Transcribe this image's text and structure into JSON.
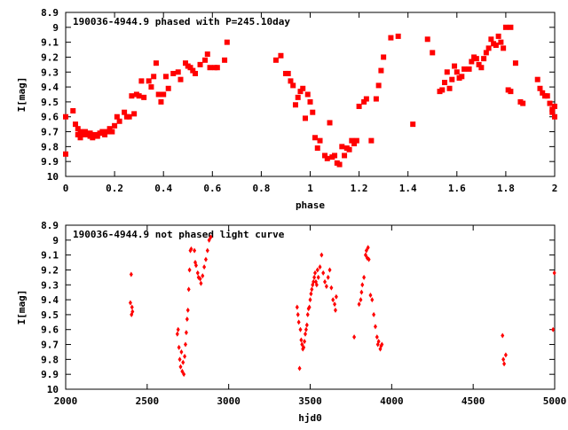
{
  "colors": {
    "points": "#ff0000",
    "frame": "#000000",
    "background": "#ffffff"
  },
  "chart_data": [
    {
      "type": "scatter",
      "title": "190036-4944.9 phased with P=245.10day",
      "xlabel": "phase",
      "ylabel": "I[mag]",
      "xlim": [
        0,
        2
      ],
      "ylim": [
        10,
        8.9
      ],
      "y_inverted": true,
      "xticks": [
        0,
        0.2,
        0.4,
        0.6,
        0.8,
        1,
        1.2,
        1.4,
        1.6,
        1.8,
        2
      ],
      "xtick_labels": [
        "0",
        "0.2",
        "0.4",
        "0.6",
        "0.8",
        "1",
        "1.2",
        "1.4",
        "1.6",
        "1.8",
        "2"
      ],
      "yticks": [
        8.9,
        9,
        9.1,
        9.2,
        9.3,
        9.4,
        9.5,
        9.6,
        9.7,
        9.8,
        9.9,
        10
      ],
      "ytick_labels": [
        "8.9",
        "9",
        "9.1",
        "9.2",
        "9.3",
        "9.4",
        "9.5",
        "9.6",
        "9.7",
        "9.8",
        "9.9",
        "10"
      ],
      "grid": false,
      "marker": "square",
      "points": [
        [
          0.0,
          9.6
        ],
        [
          0.0,
          9.85
        ],
        [
          0.03,
          9.56
        ],
        [
          0.04,
          9.65
        ],
        [
          0.05,
          9.68
        ],
        [
          0.05,
          9.72
        ],
        [
          0.06,
          9.7
        ],
        [
          0.06,
          9.74
        ],
        [
          0.07,
          9.72
        ],
        [
          0.08,
          9.7
        ],
        [
          0.09,
          9.72
        ],
        [
          0.1,
          9.73
        ],
        [
          0.1,
          9.71
        ],
        [
          0.11,
          9.74
        ],
        [
          0.12,
          9.72
        ],
        [
          0.13,
          9.73
        ],
        [
          0.14,
          9.71
        ],
        [
          0.15,
          9.7
        ],
        [
          0.16,
          9.72
        ],
        [
          0.17,
          9.7
        ],
        [
          0.18,
          9.68
        ],
        [
          0.19,
          9.7
        ],
        [
          0.2,
          9.66
        ],
        [
          0.21,
          9.6
        ],
        [
          0.22,
          9.63
        ],
        [
          0.24,
          9.57
        ],
        [
          0.25,
          9.6
        ],
        [
          0.26,
          9.6
        ],
        [
          0.27,
          9.46
        ],
        [
          0.28,
          9.58
        ],
        [
          0.29,
          9.45
        ],
        [
          0.3,
          9.46
        ],
        [
          0.31,
          9.36
        ],
        [
          0.32,
          9.47
        ],
        [
          0.34,
          9.36
        ],
        [
          0.35,
          9.4
        ],
        [
          0.36,
          9.33
        ],
        [
          0.37,
          9.24
        ],
        [
          0.38,
          9.45
        ],
        [
          0.39,
          9.5
        ],
        [
          0.4,
          9.45
        ],
        [
          0.41,
          9.33
        ],
        [
          0.42,
          9.41
        ],
        [
          0.44,
          9.31
        ],
        [
          0.46,
          9.3
        ],
        [
          0.47,
          9.35
        ],
        [
          0.49,
          9.24
        ],
        [
          0.5,
          9.26
        ],
        [
          0.51,
          9.27
        ],
        [
          0.52,
          9.29
        ],
        [
          0.53,
          9.31
        ],
        [
          0.55,
          9.25
        ],
        [
          0.57,
          9.22
        ],
        [
          0.58,
          9.18
        ],
        [
          0.59,
          9.27
        ],
        [
          0.61,
          9.27
        ],
        [
          0.62,
          9.27
        ],
        [
          0.65,
          9.22
        ],
        [
          0.66,
          9.1
        ],
        [
          0.86,
          9.22
        ],
        [
          0.88,
          9.19
        ],
        [
          0.9,
          9.31
        ],
        [
          0.91,
          9.31
        ],
        [
          0.92,
          9.36
        ],
        [
          0.93,
          9.39
        ],
        [
          0.94,
          9.52
        ],
        [
          0.95,
          9.47
        ],
        [
          0.96,
          9.43
        ],
        [
          0.97,
          9.41
        ],
        [
          0.98,
          9.61
        ],
        [
          0.99,
          9.45
        ],
        [
          1.0,
          9.5
        ],
        [
          1.01,
          9.57
        ],
        [
          1.02,
          9.74
        ],
        [
          1.03,
          9.81
        ],
        [
          1.04,
          9.76
        ],
        [
          1.06,
          9.86
        ],
        [
          1.07,
          9.88
        ],
        [
          1.08,
          9.64
        ],
        [
          1.09,
          9.87
        ],
        [
          1.1,
          9.86
        ],
        [
          1.11,
          9.91
        ],
        [
          1.12,
          9.92
        ],
        [
          1.13,
          9.8
        ],
        [
          1.14,
          9.86
        ],
        [
          1.15,
          9.81
        ],
        [
          1.16,
          9.82
        ],
        [
          1.17,
          9.76
        ],
        [
          1.18,
          9.78
        ],
        [
          1.19,
          9.76
        ],
        [
          1.2,
          9.53
        ],
        [
          1.22,
          9.5
        ],
        [
          1.23,
          9.48
        ],
        [
          1.25,
          9.76
        ],
        [
          1.27,
          9.48
        ],
        [
          1.28,
          9.39
        ],
        [
          1.29,
          9.29
        ],
        [
          1.3,
          9.2
        ],
        [
          1.33,
          9.07
        ],
        [
          1.36,
          9.06
        ],
        [
          1.42,
          9.65
        ],
        [
          1.48,
          9.08
        ],
        [
          1.5,
          9.17
        ],
        [
          1.53,
          9.43
        ],
        [
          1.54,
          9.42
        ],
        [
          1.55,
          9.37
        ],
        [
          1.56,
          9.3
        ],
        [
          1.57,
          9.41
        ],
        [
          1.58,
          9.35
        ],
        [
          1.59,
          9.26
        ],
        [
          1.6,
          9.3
        ],
        [
          1.61,
          9.34
        ],
        [
          1.62,
          9.33
        ],
        [
          1.63,
          9.28
        ],
        [
          1.65,
          9.28
        ],
        [
          1.66,
          9.23
        ],
        [
          1.67,
          9.2
        ],
        [
          1.68,
          9.21
        ],
        [
          1.69,
          9.25
        ],
        [
          1.7,
          9.27
        ],
        [
          1.71,
          9.21
        ],
        [
          1.72,
          9.17
        ],
        [
          1.73,
          9.14
        ],
        [
          1.74,
          9.08
        ],
        [
          1.75,
          9.11
        ],
        [
          1.76,
          9.12
        ],
        [
          1.77,
          9.06
        ],
        [
          1.78,
          9.1
        ],
        [
          1.79,
          9.14
        ],
        [
          1.8,
          9.0
        ],
        [
          1.81,
          9.42
        ],
        [
          1.82,
          9.43
        ],
        [
          1.82,
          9.0
        ],
        [
          1.84,
          9.24
        ],
        [
          1.86,
          9.5
        ],
        [
          1.87,
          9.51
        ],
        [
          1.93,
          9.35
        ],
        [
          1.94,
          9.41
        ],
        [
          1.95,
          9.44
        ],
        [
          1.96,
          9.46
        ],
        [
          1.97,
          9.46
        ],
        [
          1.98,
          9.51
        ],
        [
          1.99,
          9.55
        ],
        [
          2.0,
          9.53
        ],
        [
          2.0,
          9.6
        ],
        [
          1.99,
          9.57
        ]
      ]
    },
    {
      "type": "scatter",
      "title": "190036-4944.9 not phased light curve",
      "xlabel": "hjd0",
      "ylabel": "I[mag]",
      "xlim": [
        2000,
        5000
      ],
      "ylim": [
        10,
        8.9
      ],
      "y_inverted": true,
      "xticks": [
        2000,
        2500,
        3000,
        3500,
        4000,
        4500,
        5000
      ],
      "xtick_labels": [
        "2000",
        "2500",
        "3000",
        "3500",
        "4000",
        "4500",
        "5000"
      ],
      "yticks": [
        8.9,
        9,
        9.1,
        9.2,
        9.3,
        9.4,
        9.5,
        9.6,
        9.7,
        9.8,
        9.9,
        10
      ],
      "ytick_labels": [
        "8.9",
        "9",
        "9.1",
        "9.2",
        "9.3",
        "9.4",
        "9.5",
        "9.6",
        "9.7",
        "9.8",
        "9.9",
        "10"
      ],
      "grid": false,
      "marker": "diamond",
      "points": [
        [
          2397,
          9.42
        ],
        [
          2402,
          9.23
        ],
        [
          2404,
          9.5
        ],
        [
          2407,
          9.45
        ],
        [
          2410,
          9.48
        ],
        [
          2685,
          9.63
        ],
        [
          2690,
          9.6
        ],
        [
          2695,
          9.72
        ],
        [
          2700,
          9.8
        ],
        [
          2705,
          9.85
        ],
        [
          2710,
          9.75
        ],
        [
          2715,
          9.88
        ],
        [
          2720,
          9.82
        ],
        [
          2725,
          9.9
        ],
        [
          2730,
          9.78
        ],
        [
          2735,
          9.7
        ],
        [
          2740,
          9.62
        ],
        [
          2745,
          9.53
        ],
        [
          2750,
          9.47
        ],
        [
          2755,
          9.33
        ],
        [
          2760,
          9.2
        ],
        [
          2765,
          9.07
        ],
        [
          2770,
          9.06
        ],
        [
          2790,
          9.07
        ],
        [
          2795,
          9.15
        ],
        [
          2800,
          9.17
        ],
        [
          2810,
          9.22
        ],
        [
          2815,
          9.25
        ],
        [
          2825,
          9.26
        ],
        [
          2830,
          9.29
        ],
        [
          2840,
          9.24
        ],
        [
          2850,
          9.18
        ],
        [
          2860,
          9.13
        ],
        [
          2870,
          9.07
        ],
        [
          2880,
          9.0
        ],
        [
          2890,
          8.98
        ],
        [
          3420,
          9.45
        ],
        [
          3425,
          9.5
        ],
        [
          3430,
          9.55
        ],
        [
          3435,
          9.86
        ],
        [
          3440,
          9.6
        ],
        [
          3445,
          9.67
        ],
        [
          3450,
          9.7
        ],
        [
          3455,
          9.73
        ],
        [
          3460,
          9.72
        ],
        [
          3465,
          9.68
        ],
        [
          3470,
          9.63
        ],
        [
          3475,
          9.6
        ],
        [
          3480,
          9.57
        ],
        [
          3485,
          9.5
        ],
        [
          3490,
          9.46
        ],
        [
          3495,
          9.45
        ],
        [
          3500,
          9.4
        ],
        [
          3505,
          9.36
        ],
        [
          3510,
          9.33
        ],
        [
          3515,
          9.3
        ],
        [
          3520,
          9.28
        ],
        [
          3525,
          9.25
        ],
        [
          3530,
          9.22
        ],
        [
          3535,
          9.28
        ],
        [
          3540,
          9.3
        ],
        [
          3545,
          9.2
        ],
        [
          3550,
          9.25
        ],
        [
          3560,
          9.18
        ],
        [
          3570,
          9.1
        ],
        [
          3580,
          9.22
        ],
        [
          3590,
          9.28
        ],
        [
          3600,
          9.31
        ],
        [
          3610,
          9.25
        ],
        [
          3620,
          9.2
        ],
        [
          3630,
          9.32
        ],
        [
          3640,
          9.4
        ],
        [
          3650,
          9.43
        ],
        [
          3655,
          9.47
        ],
        [
          3660,
          9.38
        ],
        [
          3770,
          9.65
        ],
        [
          3800,
          9.43
        ],
        [
          3810,
          9.4
        ],
        [
          3815,
          9.35
        ],
        [
          3820,
          9.3
        ],
        [
          3830,
          9.25
        ],
        [
          3840,
          9.1
        ],
        [
          3845,
          9.07
        ],
        [
          3850,
          9.12
        ],
        [
          3855,
          9.05
        ],
        [
          3860,
          9.13
        ],
        [
          3870,
          9.37
        ],
        [
          3880,
          9.4
        ],
        [
          3890,
          9.5
        ],
        [
          3900,
          9.58
        ],
        [
          3910,
          9.65
        ],
        [
          3915,
          9.7
        ],
        [
          3920,
          9.68
        ],
        [
          3930,
          9.73
        ],
        [
          3935,
          9.71
        ],
        [
          3940,
          9.7
        ],
        [
          4680,
          9.64
        ],
        [
          4685,
          9.8
        ],
        [
          4690,
          9.83
        ],
        [
          4700,
          9.77
        ],
        [
          4990,
          9.6
        ],
        [
          4998,
          9.22
        ]
      ]
    }
  ]
}
